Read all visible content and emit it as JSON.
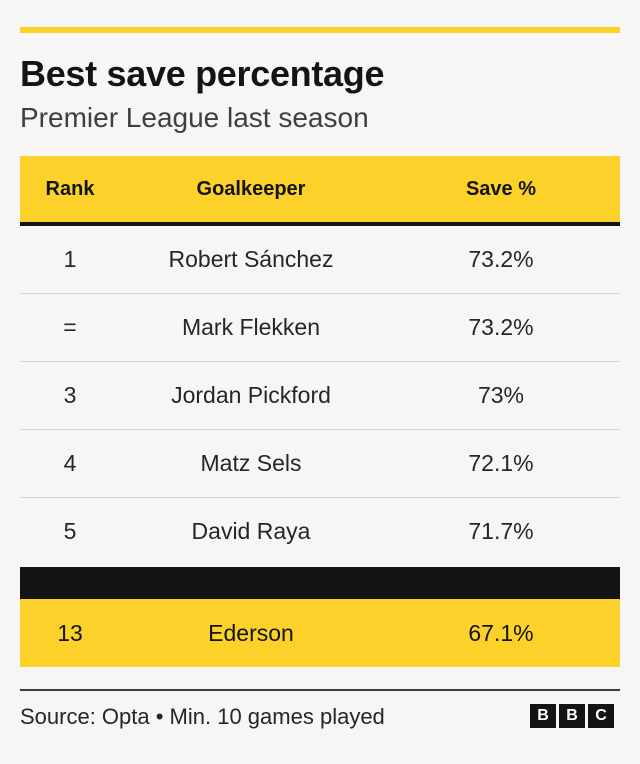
{
  "title": "Best save percentage",
  "subtitle": "Premier League last season",
  "table": {
    "headers": [
      "Rank",
      "Goalkeeper",
      "Save %"
    ],
    "rows": [
      {
        "rank": "1",
        "name": "Robert Sánchez",
        "save": "73.2%"
      },
      {
        "rank": "=",
        "name": "Mark Flekken",
        "save": "73.2%"
      },
      {
        "rank": "3",
        "name": "Jordan Pickford",
        "save": "73%"
      },
      {
        "rank": "4",
        "name": "Matz Sels",
        "save": "72.1%"
      },
      {
        "rank": "5",
        "name": "David Raya",
        "save": "71.7%"
      }
    ],
    "highlight": {
      "rank": "13",
      "name": "Ederson",
      "save": "67.1%"
    }
  },
  "footer": {
    "source": "Source: Opta • Min. 10 games played",
    "logo_letters": [
      "B",
      "B",
      "C"
    ]
  },
  "colors": {
    "accent": "#fcd12a",
    "dark": "#141414",
    "background": "#f6f6f6"
  }
}
